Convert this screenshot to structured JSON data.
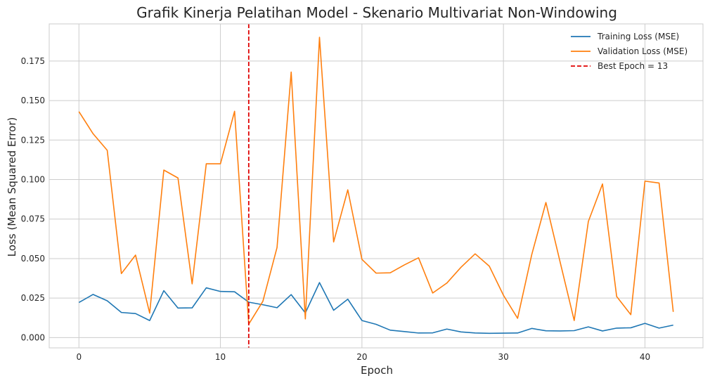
{
  "chart_data": {
    "type": "line",
    "title": "Grafik Kinerja Pelatihan Model - Skenario Multivariat Non-Windowing",
    "xlabel": "Epoch",
    "ylabel": "Loss (Mean Squared Error)",
    "xlim": [
      -2.1,
      44.1
    ],
    "ylim": [
      -0.0065,
      0.1985
    ],
    "xticks": [
      0,
      10,
      20,
      30,
      40
    ],
    "xtick_labels": [
      "0",
      "10",
      "20",
      "30",
      "40"
    ],
    "yticks": [
      0.0,
      0.025,
      0.05,
      0.075,
      0.1,
      0.125,
      0.15,
      0.175
    ],
    "ytick_labels": [
      "0.000",
      "0.025",
      "0.050",
      "0.075",
      "0.100",
      "0.125",
      "0.150",
      "0.175"
    ],
    "grid": true,
    "legend_position": "top-right",
    "x": [
      0,
      1,
      2,
      3,
      4,
      5,
      6,
      7,
      8,
      9,
      10,
      11,
      12,
      13,
      14,
      15,
      16,
      17,
      18,
      19,
      20,
      21,
      22,
      23,
      24,
      25,
      26,
      27,
      28,
      29,
      30,
      31,
      32,
      33,
      34,
      35,
      36,
      37,
      38,
      39,
      40,
      41,
      42
    ],
    "series": [
      {
        "name": "Training Loss (MSE)",
        "color": "#1f77b4",
        "style": "solid",
        "values": [
          0.0222,
          0.0273,
          0.0233,
          0.0159,
          0.0152,
          0.0108,
          0.0297,
          0.0187,
          0.0188,
          0.0315,
          0.0292,
          0.029,
          0.0224,
          0.0208,
          0.0189,
          0.0272,
          0.0156,
          0.0348,
          0.0173,
          0.0243,
          0.0108,
          0.0084,
          0.0047,
          0.0038,
          0.0029,
          0.003,
          0.0054,
          0.0036,
          0.0029,
          0.0027,
          0.0028,
          0.0029,
          0.0058,
          0.0043,
          0.0042,
          0.0044,
          0.0068,
          0.0042,
          0.006,
          0.0062,
          0.009,
          0.006,
          0.0079
        ]
      },
      {
        "name": "Validation Loss (MSE)",
        "color": "#ff7f0e",
        "style": "solid",
        "values": [
          0.143,
          0.129,
          0.1185,
          0.0405,
          0.0522,
          0.0155,
          0.106,
          0.101,
          0.034,
          0.11,
          0.11,
          0.1432,
          0.0085,
          0.023,
          0.057,
          0.168,
          0.0118,
          0.19,
          0.0605,
          0.0935,
          0.0495,
          0.0408,
          0.041,
          0.046,
          0.0505,
          0.0282,
          0.0345,
          0.0445,
          0.053,
          0.0452,
          0.0268,
          0.0122,
          0.0525,
          0.0855,
          0.048,
          0.0108,
          0.0735,
          0.0972,
          0.026,
          0.0145,
          0.099,
          0.0978,
          0.0163
        ]
      }
    ],
    "vlines": [
      {
        "name": "Best Epoch = 13",
        "x": 12,
        "color": "#e00000",
        "style": "dashed"
      }
    ]
  }
}
